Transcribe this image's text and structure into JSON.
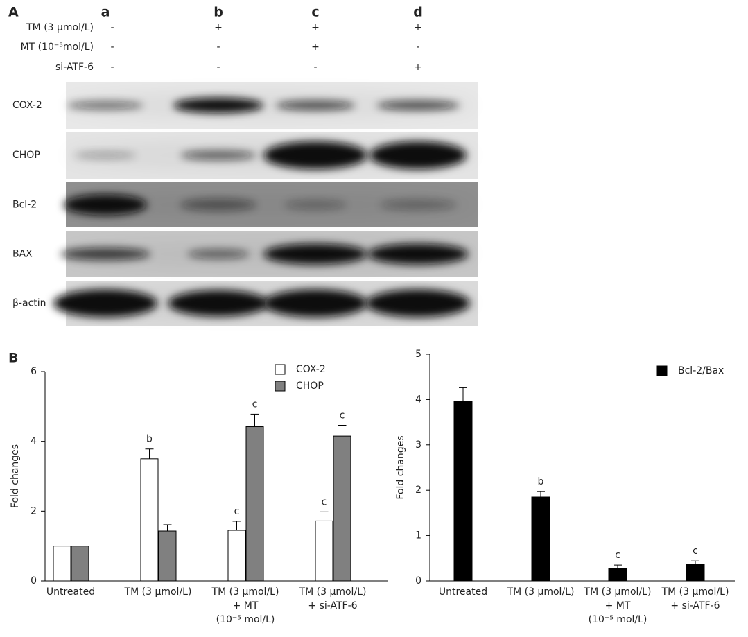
{
  "panel_a": {
    "label": "A",
    "lanes": [
      "a",
      "b",
      "c",
      "d"
    ],
    "treatments": [
      {
        "name": "TM (3 μmol/L)",
        "signs": [
          "-",
          "+",
          "+",
          "+"
        ]
      },
      {
        "name": "MT (10⁻⁵mol/L)",
        "signs": [
          "-",
          "-",
          "+",
          "-"
        ]
      },
      {
        "name": "si-ATF-6",
        "signs": [
          "-",
          "-",
          "-",
          "+"
        ]
      }
    ],
    "proteins": [
      "COX-2",
      "CHOP",
      "Bcl-2",
      "BAX",
      "β-actin"
    ]
  },
  "panel_b_label": "B",
  "chart_data": [
    {
      "type": "bar",
      "ylabel": "Fold changes",
      "categories": [
        "Untreated",
        "TM (3 μmol/L)",
        "TM (3 μmol/L)\n+ MT\n(10⁻⁵ mol/L)",
        "TM (3 μmol/L)\n+ si-ATF-6"
      ],
      "series": [
        {
          "name": "COX-2",
          "color": "#ffffff",
          "values": [
            1.0,
            3.5,
            1.45,
            1.72
          ],
          "errors": [
            null,
            0.28,
            0.26,
            0.26
          ],
          "annotations": [
            null,
            "b",
            "c",
            "c"
          ]
        },
        {
          "name": "CHOP",
          "color": "#808080",
          "values": [
            1.0,
            1.43,
            4.42,
            4.15
          ],
          "errors": [
            null,
            0.18,
            0.36,
            0.31
          ],
          "annotations": [
            null,
            null,
            "c",
            "c"
          ]
        }
      ],
      "ylim": [
        0,
        6
      ],
      "yticks": [
        0,
        2,
        4,
        6
      ],
      "legend": "upper right"
    },
    {
      "type": "bar",
      "ylabel": "Fold changes",
      "categories": [
        "Untreated",
        "TM (3 μmol/L)",
        "TM (3 μmol/L)\n+ MT\n(10⁻⁵ mol/L)",
        "TM (3 μmol/L)\n+ si-ATF-6"
      ],
      "series": [
        {
          "name": "Bcl-2/Bax",
          "color": "#000000",
          "values": [
            3.96,
            1.85,
            0.27,
            0.37
          ],
          "errors": [
            0.3,
            0.12,
            0.08,
            0.07
          ],
          "annotations": [
            null,
            "b",
            "c",
            "c"
          ]
        }
      ],
      "ylim": [
        0,
        5
      ],
      "yticks": [
        0,
        1,
        2,
        3,
        4,
        5
      ],
      "legend": "upper right"
    }
  ]
}
